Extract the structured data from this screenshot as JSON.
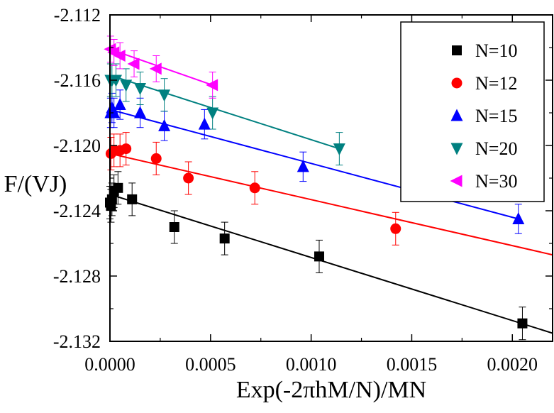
{
  "chart_data": {
    "type": "scatter",
    "xlabel": "Exp(-2πhM/N)/MN",
    "ylabel": "F/(VJ)",
    "xlim": [
      0.0,
      0.0022
    ],
    "ylim": [
      -2.132,
      -2.112
    ],
    "xticks": [
      0.0,
      0.0005,
      0.001,
      0.0015,
      0.002
    ],
    "xtick_labels": [
      "0.0000",
      "0.0005",
      "0.0010",
      "0.0015",
      "0.0020"
    ],
    "yticks": [
      -2.132,
      -2.128,
      -2.124,
      -2.12,
      -2.116,
      -2.112
    ],
    "ytick_labels": [
      "-2.132",
      "-2.128",
      "-2.124",
      "-2.120",
      "-2.116",
      "-2.112"
    ],
    "grid": false,
    "legend_position": "top-right",
    "series": [
      {
        "name": "N=10",
        "color": "#000000",
        "marker": "square",
        "x": [
          0.0,
          5e-06,
          1e-05,
          2e-05,
          4e-05,
          0.00011,
          0.00032,
          0.00057,
          0.00104,
          0.00205
        ],
        "y": [
          -2.1235,
          -2.1237,
          -2.1233,
          -2.1228,
          -2.1226,
          -2.1233,
          -2.125,
          -2.1257,
          -2.1268,
          -2.1309
        ],
        "err": 0.001,
        "fit": {
          "x": [
            0.0,
            0.0022
          ],
          "y": [
            -2.123,
            -2.1315
          ]
        }
      },
      {
        "name": "N=12",
        "color": "#ff0000",
        "marker": "circle",
        "x": [
          5e-06,
          2e-05,
          5e-05,
          8e-05,
          0.00023,
          0.00039,
          0.00072,
          0.00142
        ],
        "y": [
          -2.1205,
          -2.1203,
          -2.1203,
          -2.1202,
          -2.1208,
          -2.122,
          -2.1226,
          -2.1251
        ],
        "err": 0.001,
        "fit": {
          "x": [
            0.0,
            0.0022
          ],
          "y": [
            -2.1205,
            -2.1267
          ]
        }
      },
      {
        "name": "N=15",
        "color": "#0000ff",
        "marker": "triangle-up",
        "x": [
          3e-06,
          1e-05,
          2e-05,
          5e-05,
          0.00015,
          0.00027,
          0.00047,
          0.00096,
          0.00203
        ],
        "y": [
          -2.118,
          -2.1177,
          -2.118,
          -2.1175,
          -2.118,
          -2.1188,
          -2.1187,
          -2.1213,
          -2.1245
        ],
        "err": 0.0009,
        "fit": {
          "x": [
            0.0,
            0.00203
          ],
          "y": [
            -2.1178,
            -2.1245
          ]
        }
      },
      {
        "name": "N=20",
        "color": "#008080",
        "marker": "triangle-down",
        "x": [
          3e-06,
          1e-05,
          3e-05,
          8e-05,
          0.00015,
          0.00027,
          0.00051,
          0.00114
        ],
        "y": [
          -2.116,
          -2.116,
          -2.116,
          -2.1163,
          -2.1165,
          -2.1169,
          -2.118,
          -2.1202
        ],
        "err": 0.001,
        "fit": {
          "x": [
            0.0,
            0.00114
          ],
          "y": [
            -2.1157,
            -2.1202
          ]
        }
      },
      {
        "name": "N=30",
        "color": "#ff00ff",
        "marker": "triangle-left",
        "x": [
          3e-06,
          2e-05,
          5e-05,
          0.00012,
          0.00023,
          0.00051
        ],
        "y": [
          -2.1141,
          -2.1143,
          -2.1145,
          -2.115,
          -2.1153,
          -2.1163
        ],
        "err": 0.0008,
        "fit": {
          "x": [
            0.0,
            0.00051
          ],
          "y": [
            -2.1141,
            -2.1163
          ]
        }
      }
    ]
  }
}
